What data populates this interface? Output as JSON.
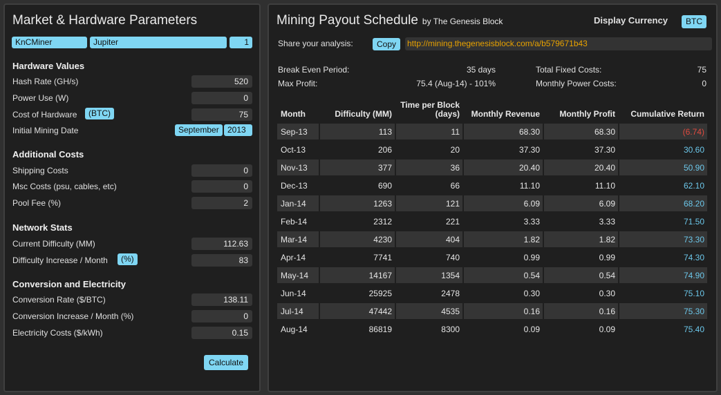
{
  "left_panel": {
    "title": "Market & Hardware Parameters",
    "selectors": {
      "manufacturer": "KnCMiner",
      "model": "Jupiter",
      "quantity": "1"
    },
    "hardware": {
      "heading": "Hardware Values",
      "hash_rate_label": "Hash Rate (GH/s)",
      "hash_rate": "520",
      "power_label": "Power Use (W)",
      "power": "0",
      "cost_label": "Cost of Hardware",
      "cost_unit": "(BTC)",
      "cost": "75",
      "date_label": "Initial Mining Date",
      "date_month": "September",
      "date_year": "2013"
    },
    "additional": {
      "heading": "Additional Costs",
      "shipping_label": "Shipping Costs",
      "shipping": "0",
      "misc_label": "Msc Costs (psu, cables, etc)",
      "misc": "0",
      "pool_label": "Pool Fee (%)",
      "pool": "2"
    },
    "network": {
      "heading": "Network Stats",
      "difficulty_label": "Current Difficulty (MM)",
      "difficulty": "112.63",
      "increase_label": "Difficulty Increase / Month",
      "increase_unit": "(%)",
      "increase": "83"
    },
    "conversion": {
      "heading": "Conversion and Electricity",
      "rate_label": "Conversion Rate ($/BTC)",
      "rate": "138.11",
      "conv_increase_label": "Conversion Increase / Month (%)",
      "conv_increase": "0",
      "electricity_label": "Electricity Costs ($/kWh)",
      "electricity": "0.15"
    },
    "calculate_label": "Calculate"
  },
  "right_panel": {
    "title": "Mining Payout Schedule",
    "byline": "by The Genesis Block",
    "display_currency_label": "Display Currency",
    "display_currency": "BTC",
    "share_label": "Share your analysis:",
    "copy_label": "Copy",
    "share_url": "http://mining.thegenesisblock.com/a/b579671b43",
    "summary": {
      "break_even_label": "Break Even Period:",
      "break_even": "35 days",
      "max_profit_label": "Max Profit:",
      "max_profit": "75.4 (Aug-14) - 101%",
      "fixed_costs_label": "Total Fixed Costs:",
      "fixed_costs": "75",
      "power_costs_label": "Monthly Power Costs:",
      "power_costs": "0"
    },
    "table": {
      "headers": [
        "Month",
        "Difficulty (MM)",
        "Time per Block (days)",
        "Monthly Revenue",
        "Monthly Profit",
        "Cumulative Return"
      ],
      "rows": [
        [
          "Sep-13",
          "113",
          "11",
          "68.30",
          "68.30",
          "(6.74)"
        ],
        [
          "Oct-13",
          "206",
          "20",
          "37.30",
          "37.30",
          "30.60"
        ],
        [
          "Nov-13",
          "377",
          "36",
          "20.40",
          "20.40",
          "50.90"
        ],
        [
          "Dec-13",
          "690",
          "66",
          "11.10",
          "11.10",
          "62.10"
        ],
        [
          "Jan-14",
          "1263",
          "121",
          "6.09",
          "6.09",
          "68.20"
        ],
        [
          "Feb-14",
          "2312",
          "221",
          "3.33",
          "3.33",
          "71.50"
        ],
        [
          "Mar-14",
          "4230",
          "404",
          "1.82",
          "1.82",
          "73.30"
        ],
        [
          "Apr-14",
          "7741",
          "740",
          "0.99",
          "0.99",
          "74.30"
        ],
        [
          "May-14",
          "14167",
          "1354",
          "0.54",
          "0.54",
          "74.90"
        ],
        [
          "Jun-14",
          "25925",
          "2478",
          "0.30",
          "0.30",
          "75.10"
        ],
        [
          "Jul-14",
          "47442",
          "4535",
          "0.16",
          "0.16",
          "75.30"
        ],
        [
          "Aug-14",
          "86819",
          "8300",
          "0.09",
          "0.09",
          "75.40"
        ]
      ]
    }
  },
  "colors": {
    "accent": "#7fd6f3",
    "positive": "#6cc7ea",
    "negative": "#e04a3f",
    "link": "#e8a200"
  }
}
